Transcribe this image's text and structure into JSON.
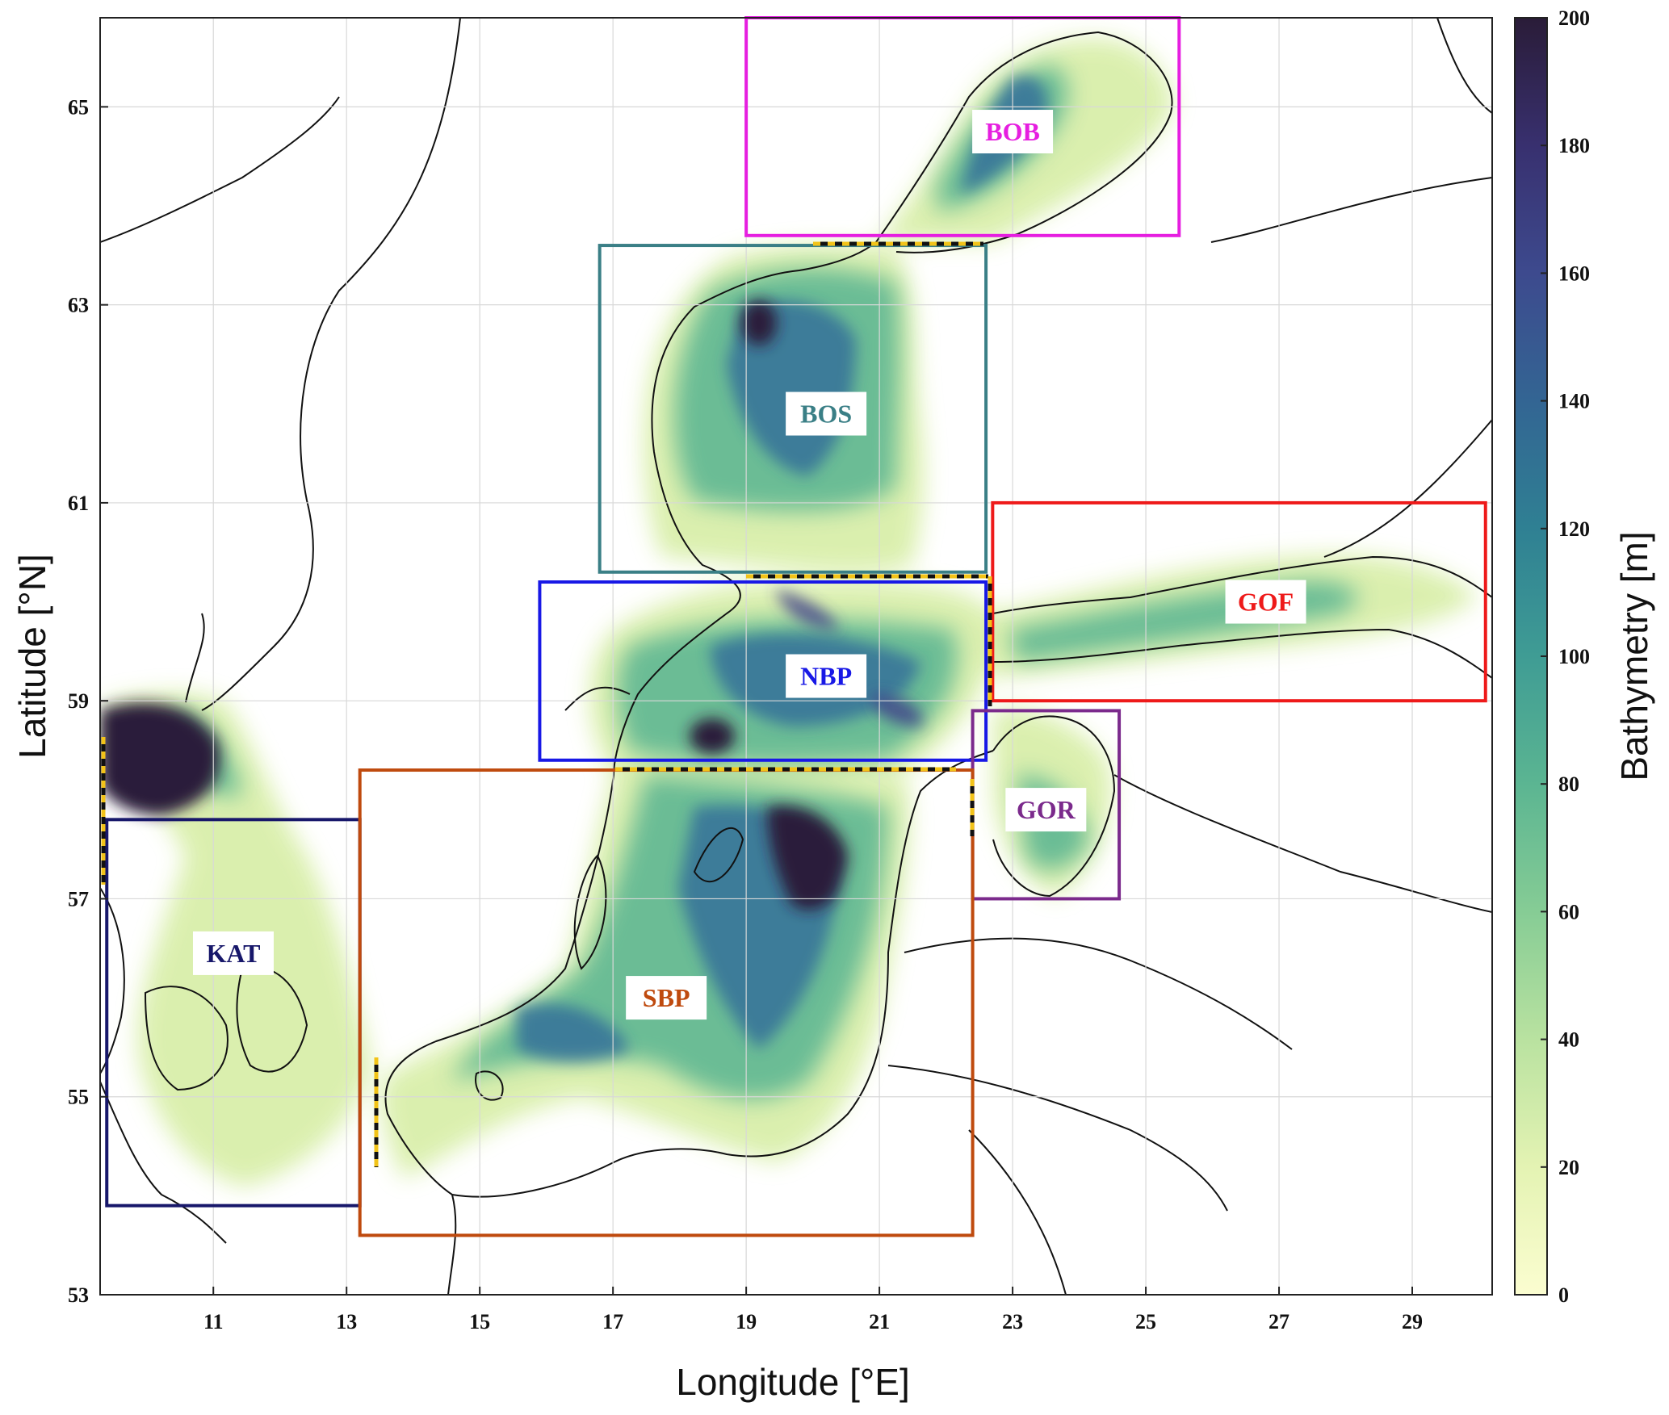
{
  "map": {
    "xlabel": "Longitude [°E]",
    "ylabel": "Latitude [°N]",
    "lon_range": [
      9.3,
      30.2
    ],
    "lat_range": [
      53,
      65.9
    ],
    "x_ticks": [
      11,
      13,
      15,
      17,
      19,
      21,
      23,
      25,
      27,
      29
    ],
    "y_ticks": [
      53,
      55,
      57,
      59,
      61,
      63,
      65
    ],
    "grid": true,
    "colormap": [
      "#fbfdd0",
      "#d8eea8",
      "#9fd79a",
      "#5fbb93",
      "#3b9a95",
      "#2f7c93",
      "#356393",
      "#3e4c8f",
      "#3a2f72",
      "#2b1d3c"
    ]
  },
  "colorbar": {
    "label": "Bathymetry [m]",
    "ticks": [
      0,
      20,
      40,
      60,
      80,
      100,
      120,
      140,
      160,
      180,
      200
    ],
    "range": [
      0,
      200
    ]
  },
  "regions": [
    {
      "code": "BOB",
      "color": "#e61ee0",
      "lon": [
        19.0,
        25.5
      ],
      "lat": [
        63.7,
        65.9
      ],
      "label_lon": 23.0,
      "label_lat": 64.75
    },
    {
      "code": "BOS",
      "color": "#3a7f86",
      "lon": [
        16.8,
        22.6
      ],
      "lat": [
        60.3,
        63.6
      ],
      "label_lon": 20.2,
      "label_lat": 61.9
    },
    {
      "code": "GOF",
      "color": "#ee1a1a",
      "lon": [
        22.7,
        30.1
      ],
      "lat": [
        59.0,
        61.0
      ],
      "label_lon": 26.8,
      "label_lat": 60.0
    },
    {
      "code": "NBP",
      "color": "#1818e6",
      "lon": [
        15.9,
        22.6
      ],
      "lat": [
        58.4,
        60.2
      ],
      "label_lon": 20.2,
      "label_lat": 59.25
    },
    {
      "code": "GOR",
      "color": "#7b2a8c",
      "lon": [
        22.4,
        24.6
      ],
      "lat": [
        57.0,
        58.9
      ],
      "label_lon": 23.5,
      "label_lat": 57.9
    },
    {
      "code": "KAT",
      "color": "#17176a",
      "lon": [
        9.4,
        13.2
      ],
      "lat": [
        53.9,
        57.8
      ],
      "label_lon": 11.3,
      "label_lat": 56.45
    },
    {
      "code": "SBP",
      "color": "#bf4a0e",
      "lon": [
        13.2,
        22.4
      ],
      "lat": [
        53.6,
        58.3
      ],
      "label_lon": 17.8,
      "label_lat": 56.0
    }
  ]
}
